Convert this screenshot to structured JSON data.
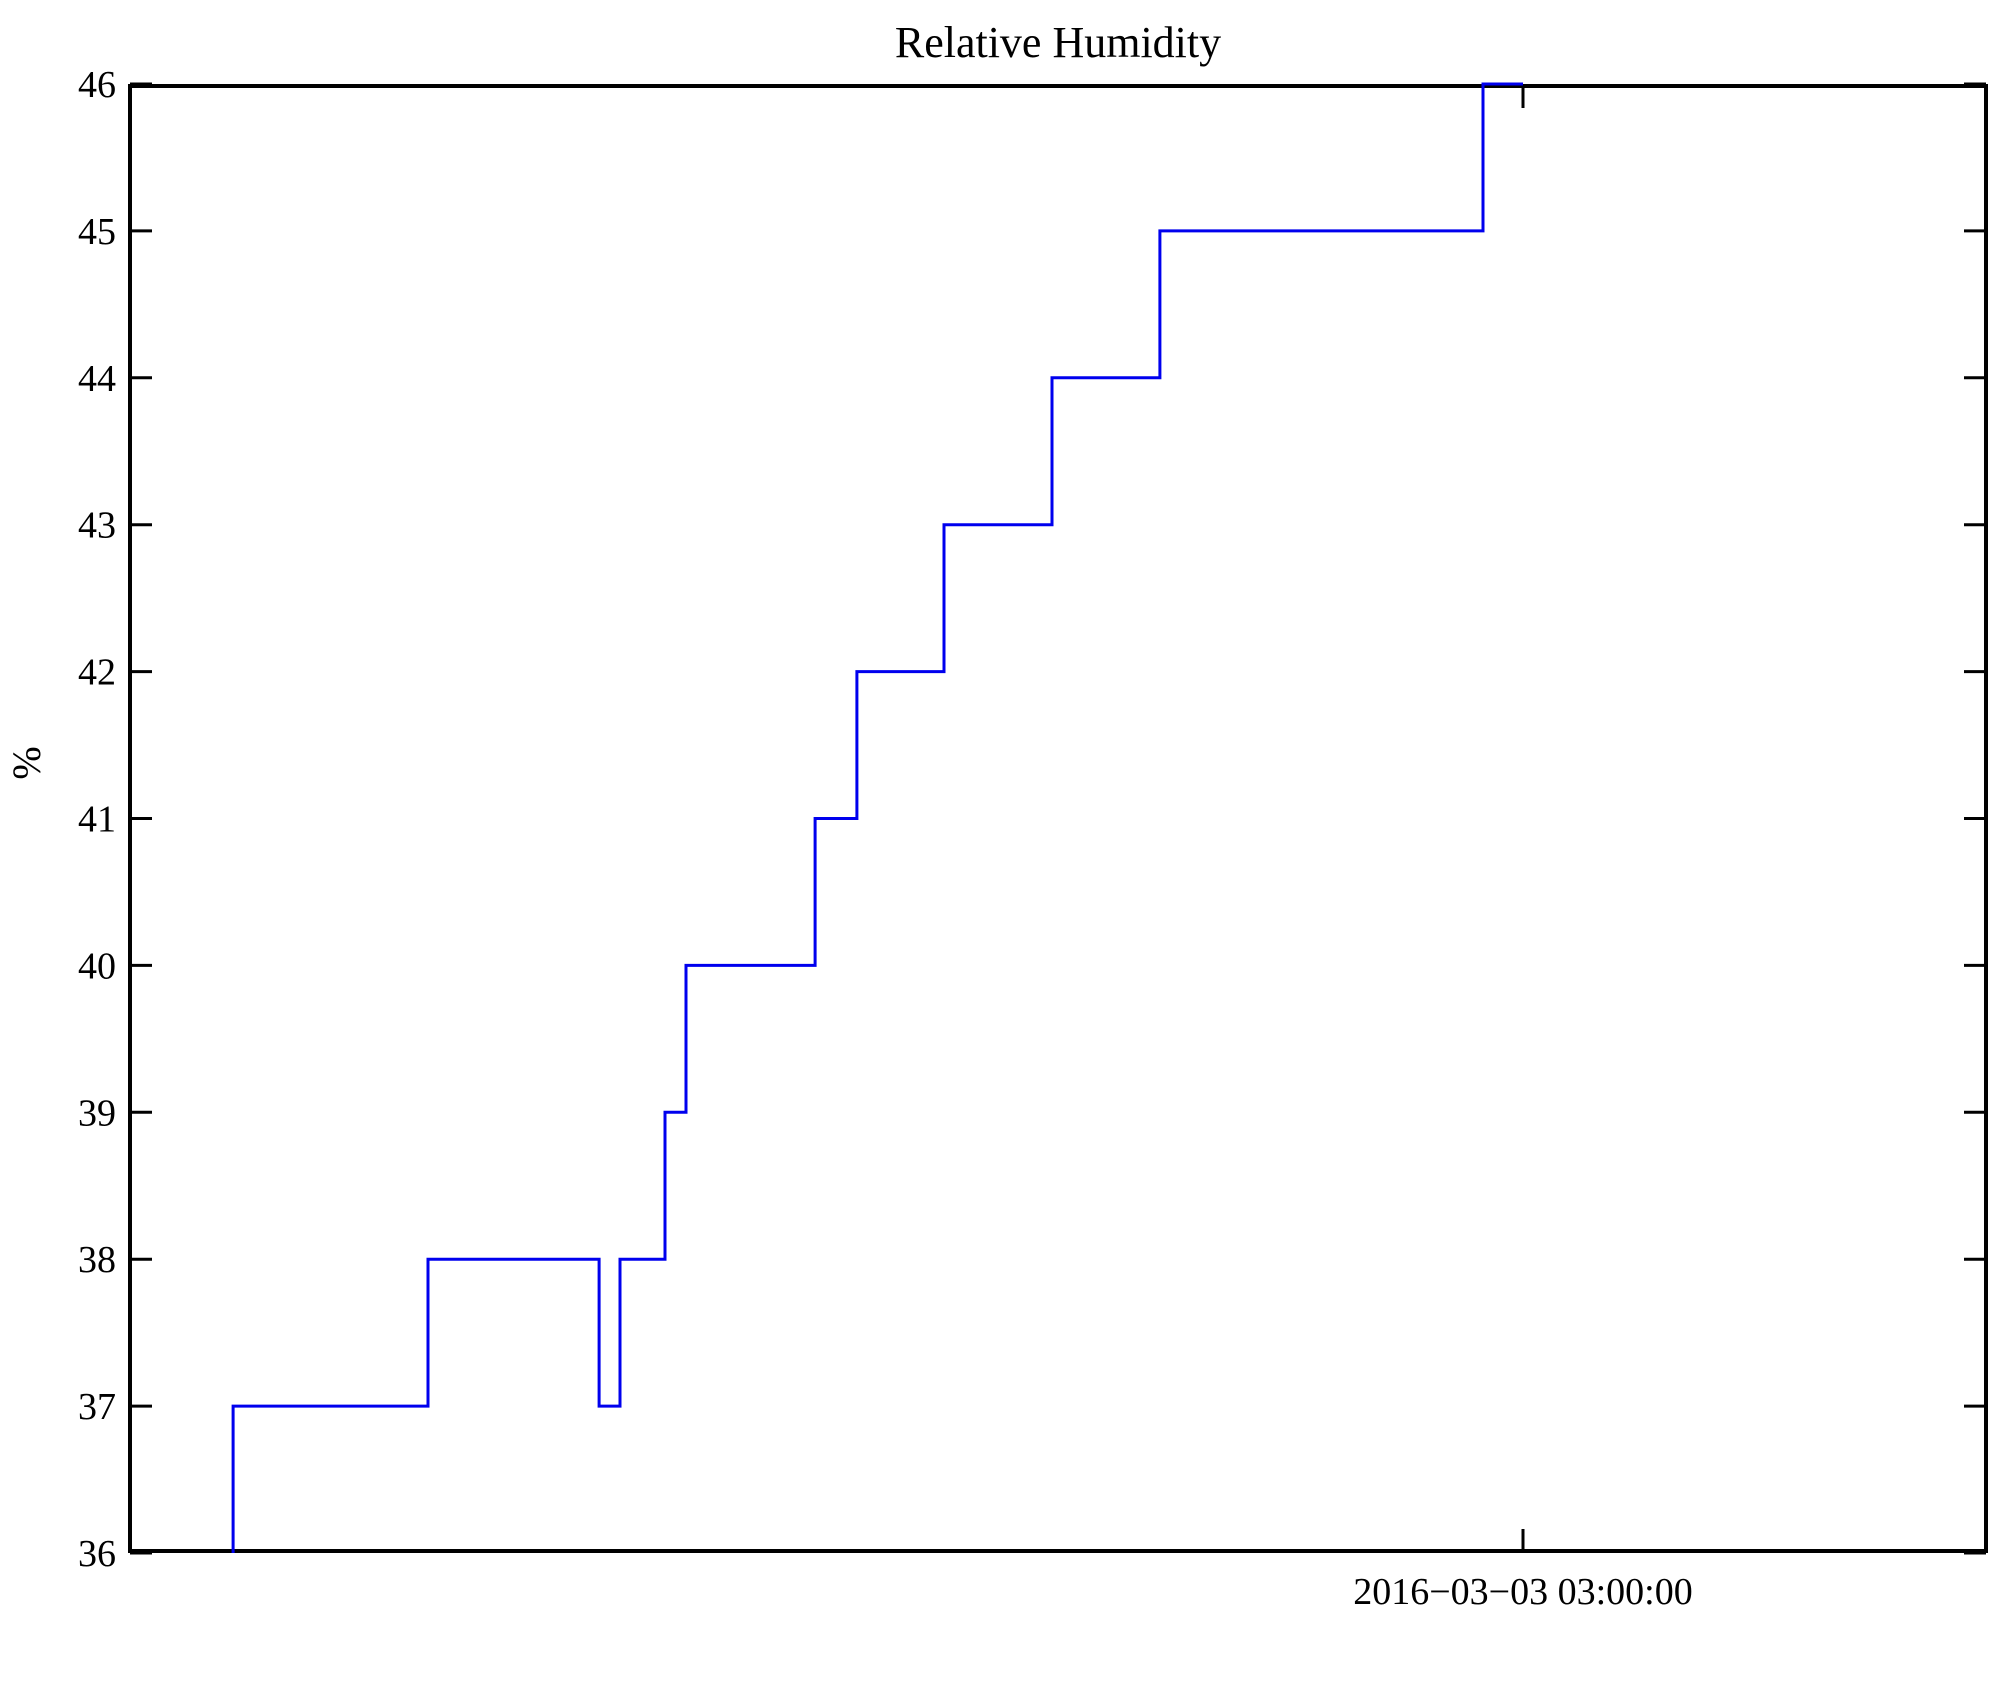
{
  "chart_data": {
    "type": "line",
    "subtype": "step",
    "title": "Relative Humidity",
    "ylabel": "%",
    "xlabel": "",
    "ylim": [
      36,
      46
    ],
    "yticks": [
      36,
      37,
      38,
      39,
      40,
      41,
      42,
      43,
      44,
      45,
      46
    ],
    "xticks": [
      {
        "label": "2016−03−03 03:00:00",
        "fraction": 0.75
      }
    ],
    "grid": false,
    "legend_position": "none",
    "line_color": "#0000ee",
    "frame_color": "#000000",
    "y_values_sequence": [
      36,
      37,
      38,
      37,
      38,
      39,
      40,
      41,
      42,
      43,
      44,
      45,
      46
    ],
    "series": [
      {
        "name": "Relative Humidity",
        "polyline": [
          [
            0.0565,
            36
          ],
          [
            0.0565,
            37
          ],
          [
            0.1613,
            37
          ],
          [
            0.1613,
            38
          ],
          [
            0.2533,
            38
          ],
          [
            0.2533,
            37
          ],
          [
            0.2645,
            37
          ],
          [
            0.2645,
            38
          ],
          [
            0.2887,
            38
          ],
          [
            0.2887,
            39
          ],
          [
            0.3,
            39
          ],
          [
            0.3,
            40
          ],
          [
            0.3694,
            40
          ],
          [
            0.3694,
            41
          ],
          [
            0.3919,
            41
          ],
          [
            0.3919,
            42
          ],
          [
            0.4387,
            42
          ],
          [
            0.4387,
            43
          ],
          [
            0.4968,
            43
          ],
          [
            0.4968,
            44
          ],
          [
            0.5548,
            44
          ],
          [
            0.5548,
            45
          ],
          [
            0.7285,
            45
          ],
          [
            0.7285,
            46
          ],
          [
            0.75,
            46
          ]
        ]
      }
    ]
  }
}
